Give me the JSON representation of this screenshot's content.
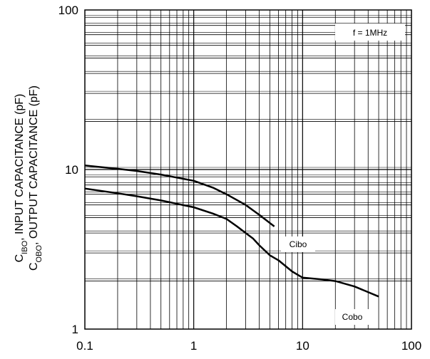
{
  "chart_data": {
    "type": "line",
    "title": "",
    "xlabel": "",
    "ylabel_line1": "C_IBO, INPUT CAPACITANCE (pF)",
    "ylabel_line2": "C_OBO, OUTPUT CAPACITANCE (pF)",
    "x_scale": "log",
    "y_scale": "log",
    "xlim": [
      0.1,
      100
    ],
    "ylim": [
      1,
      100
    ],
    "x_ticks": [
      0.1,
      1,
      10,
      100
    ],
    "x_tick_labels": [
      "0.1",
      "1",
      "10",
      "100"
    ],
    "y_ticks": [
      1,
      10,
      100
    ],
    "y_tick_labels": [
      "1",
      "10",
      "100"
    ],
    "grid": true,
    "annotation": "f = 1MHz",
    "series": [
      {
        "name": "Cibo",
        "x": [
          0.1,
          0.2,
          0.3,
          0.5,
          0.7,
          1.0,
          1.5,
          2.0,
          3.0,
          4.0,
          5.5
        ],
        "y": [
          10.6,
          10.1,
          9.8,
          9.3,
          8.9,
          8.5,
          7.7,
          7.0,
          6.0,
          5.2,
          4.4
        ]
      },
      {
        "name": "Cobo",
        "x": [
          0.1,
          0.2,
          0.3,
          0.5,
          1.0,
          1.5,
          2.0,
          2.5,
          3.0,
          3.5,
          4.0,
          5.0,
          6.0,
          8.0,
          10,
          15,
          20,
          30,
          50
        ],
        "y": [
          7.6,
          7.1,
          6.8,
          6.4,
          5.8,
          5.3,
          4.9,
          4.4,
          4.0,
          3.7,
          3.35,
          2.9,
          2.7,
          2.3,
          2.1,
          2.05,
          2.0,
          1.85,
          1.6
        ]
      }
    ]
  }
}
